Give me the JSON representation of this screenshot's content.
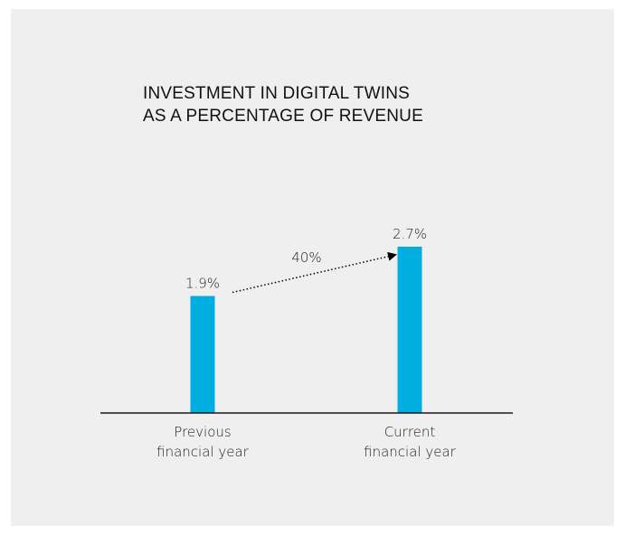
{
  "chart_data": {
    "type": "bar",
    "title": [
      "INVESTMENT IN DIGITAL TWINS",
      "AS A PERCENTAGE OF REVENUE"
    ],
    "categories": [
      [
        "Previous",
        "financial year"
      ],
      [
        "Current",
        "financial year"
      ]
    ],
    "values": [
      1.9,
      2.7
    ],
    "value_labels": [
      "1.9%",
      "2.7%"
    ],
    "ylim": [
      0,
      2.7
    ],
    "annotation": {
      "text": "40%",
      "from_category": 0,
      "to_category": 1,
      "style": "dotted-arrow"
    },
    "bar_color": "#00aee0",
    "background_color": "#efefef",
    "grid": false,
    "legend": "none"
  }
}
